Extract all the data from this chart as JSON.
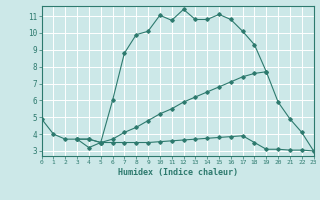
{
  "xlabel": "Humidex (Indice chaleur)",
  "xlim": [
    0,
    23
  ],
  "ylim": [
    2.7,
    11.6
  ],
  "xticks": [
    0,
    1,
    2,
    3,
    4,
    5,
    6,
    7,
    8,
    9,
    10,
    11,
    12,
    13,
    14,
    15,
    16,
    17,
    18,
    19,
    20,
    21,
    22,
    23
  ],
  "yticks": [
    3,
    4,
    5,
    6,
    7,
    8,
    9,
    10,
    11
  ],
  "bg_color": "#cce8e8",
  "grid_color": "#ffffff",
  "line_color": "#2d7a6e",
  "lines": [
    {
      "x": [
        0,
        1,
        2,
        3,
        4,
        5,
        6,
        7,
        8,
        9,
        10,
        11,
        12,
        13,
        14,
        15,
        16,
        17,
        18,
        19
      ],
      "y": [
        4.9,
        4.0,
        3.7,
        3.7,
        3.2,
        3.5,
        6.0,
        8.8,
        9.9,
        10.1,
        11.05,
        10.75,
        11.4,
        10.8,
        10.8,
        11.1,
        10.8,
        10.1,
        9.3,
        7.7
      ]
    },
    {
      "x": [
        3,
        4,
        5,
        6,
        7,
        8,
        9,
        10,
        11,
        12,
        13,
        14,
        15,
        16,
        17,
        18,
        19,
        20,
        21,
        22,
        23
      ],
      "y": [
        3.7,
        3.7,
        3.5,
        3.5,
        3.5,
        3.5,
        3.5,
        3.55,
        3.6,
        3.65,
        3.7,
        3.75,
        3.8,
        3.85,
        3.9,
        3.5,
        3.1,
        3.1,
        3.05,
        3.05,
        3.0
      ]
    },
    {
      "x": [
        3,
        4,
        5,
        6,
        7,
        8,
        9,
        10,
        11,
        12,
        13,
        14,
        15,
        16,
        17,
        18,
        19,
        20,
        21,
        22,
        23
      ],
      "y": [
        3.7,
        3.7,
        3.5,
        3.7,
        4.1,
        4.4,
        4.8,
        5.2,
        5.5,
        5.9,
        6.2,
        6.5,
        6.8,
        7.1,
        7.4,
        7.6,
        7.7,
        5.9,
        4.9,
        4.1,
        3.0
      ]
    }
  ]
}
